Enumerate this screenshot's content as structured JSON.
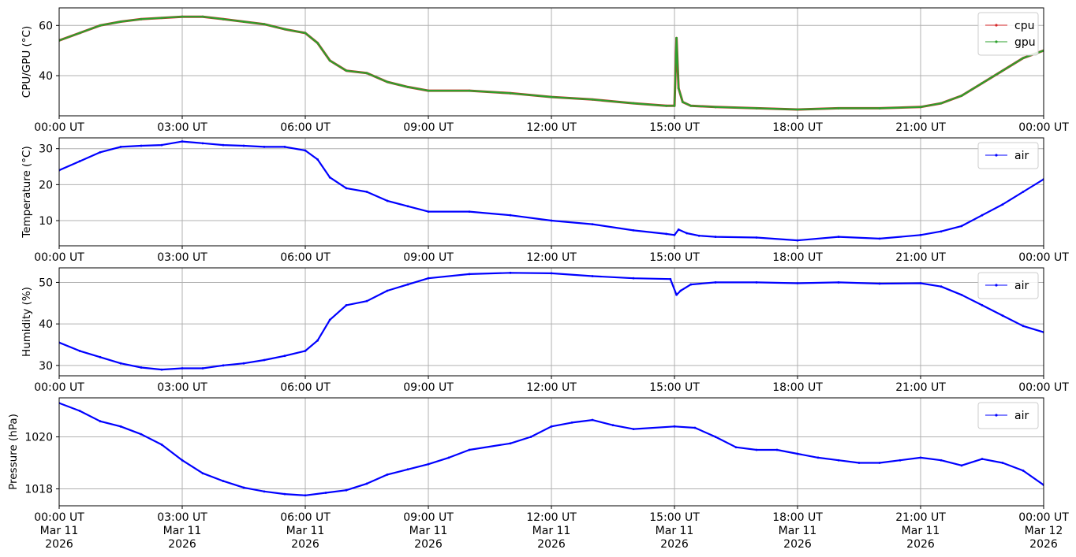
{
  "chart_data": [
    {
      "type": "line",
      "ylabel": "CPU/GPU (°C)",
      "ylim": [
        24,
        67
      ],
      "yticks": [
        40,
        60
      ],
      "xlim": [
        0,
        24
      ],
      "xticks": [
        0,
        3,
        6,
        9,
        12,
        15,
        18,
        21,
        24
      ],
      "xtick_labels": [
        "00:00 UT",
        "03:00 UT",
        "06:00 UT",
        "09:00 UT",
        "12:00 UT",
        "15:00 UT",
        "18:00 UT",
        "21:00 UT",
        "00:00 UT"
      ],
      "grid": true,
      "legend": "top-right",
      "series": [
        {
          "name": "cpu",
          "color": "#d62728",
          "x": [
            0,
            0.5,
            1,
            1.5,
            2,
            2.5,
            3,
            3.5,
            4,
            4.5,
            5,
            5.5,
            6,
            6.3,
            6.6,
            7,
            7.5,
            8,
            8.5,
            9,
            10,
            11,
            12,
            13,
            14,
            14.8,
            15.0,
            15.05,
            15.1,
            15.2,
            15.4,
            16,
            17,
            18,
            19,
            20,
            21,
            21.5,
            22,
            22.5,
            23,
            23.5,
            24
          ],
          "y": [
            54,
            57,
            60,
            61.5,
            62.5,
            63,
            63.5,
            63.5,
            62.5,
            61.5,
            60.5,
            58.5,
            57,
            53,
            46,
            42,
            41,
            37.5,
            35.5,
            34,
            34,
            33,
            31.5,
            30.5,
            29,
            28,
            28,
            55,
            35,
            29.5,
            28,
            27.5,
            27,
            26.5,
            27,
            27,
            27.5,
            29,
            32,
            37,
            42,
            47,
            50
          ]
        },
        {
          "name": "gpu",
          "color": "#2ca02c",
          "x": [
            0,
            0.5,
            1,
            1.5,
            2,
            2.5,
            3,
            3.5,
            4,
            4.5,
            5,
            5.5,
            6,
            6.3,
            6.6,
            7,
            7.5,
            8,
            8.5,
            9,
            10,
            11,
            12,
            13,
            14,
            14.8,
            15.0,
            15.05,
            15.1,
            15.2,
            15.4,
            16,
            17,
            18,
            19,
            20,
            21,
            21.5,
            22,
            22.5,
            23,
            23.5,
            24
          ],
          "y": [
            54,
            57,
            60,
            61.5,
            62.5,
            63,
            63.5,
            63.5,
            62.5,
            61.5,
            60.5,
            58.5,
            57,
            53,
            46,
            42,
            41,
            37.5,
            35.5,
            34,
            34,
            33,
            31.5,
            30.5,
            29,
            28,
            28,
            55,
            35,
            29.5,
            28,
            27.5,
            27,
            26.5,
            27,
            27,
            27.5,
            29,
            32,
            37,
            42,
            47,
            50
          ]
        }
      ]
    },
    {
      "type": "line",
      "ylabel": "Temperature (°C)",
      "ylim": [
        3,
        33
      ],
      "yticks": [
        10,
        20,
        30
      ],
      "xlim": [
        0,
        24
      ],
      "xticks": [
        0,
        3,
        6,
        9,
        12,
        15,
        18,
        21,
        24
      ],
      "xtick_labels": [
        "00:00 UT",
        "03:00 UT",
        "06:00 UT",
        "09:00 UT",
        "12:00 UT",
        "15:00 UT",
        "18:00 UT",
        "21:00 UT",
        "00:00 UT"
      ],
      "grid": true,
      "legend": "top-right",
      "series": [
        {
          "name": "air",
          "color": "#0000ff",
          "x": [
            0,
            0.5,
            1,
            1.5,
            2,
            2.5,
            3,
            3.5,
            4,
            4.5,
            5,
            5.5,
            6,
            6.3,
            6.6,
            7,
            7.5,
            8,
            8.5,
            9,
            10,
            11,
            12,
            13,
            14,
            14.8,
            15.0,
            15.1,
            15.3,
            15.6,
            16,
            17,
            18,
            19,
            20,
            21,
            21.5,
            22,
            22.5,
            23,
            23.5,
            24
          ],
          "y": [
            24,
            26.5,
            29,
            30.5,
            30.8,
            31,
            32,
            31.5,
            31,
            30.8,
            30.5,
            30.5,
            29.5,
            27,
            22,
            19,
            18,
            15.5,
            14,
            12.5,
            12.5,
            11.5,
            10,
            9,
            7.3,
            6.3,
            6,
            7.5,
            6.5,
            5.8,
            5.5,
            5.3,
            4.5,
            5.5,
            5,
            6,
            7,
            8.5,
            11.5,
            14.5,
            18,
            21.5
          ]
        }
      ]
    },
    {
      "type": "line",
      "ylabel": "Humidity (%)",
      "ylim": [
        27.5,
        53.5
      ],
      "yticks": [
        30,
        40,
        50
      ],
      "xlim": [
        0,
        24
      ],
      "xticks": [
        0,
        3,
        6,
        9,
        12,
        15,
        18,
        21,
        24
      ],
      "xtick_labels": [
        "00:00 UT",
        "03:00 UT",
        "06:00 UT",
        "09:00 UT",
        "12:00 UT",
        "15:00 UT",
        "18:00 UT",
        "21:00 UT",
        "00:00 UT"
      ],
      "grid": true,
      "legend": "top-right",
      "series": [
        {
          "name": "air",
          "color": "#0000ff",
          "x": [
            0,
            0.5,
            1,
            1.5,
            2,
            2.5,
            3,
            3.5,
            4,
            4.5,
            5,
            5.5,
            6,
            6.3,
            6.6,
            7,
            7.5,
            8,
            8.5,
            9,
            10,
            11,
            12,
            13,
            14,
            14.9,
            15.05,
            15.15,
            15.4,
            16,
            17,
            18,
            19,
            20,
            21,
            21.5,
            22,
            22.5,
            23,
            23.5,
            24
          ],
          "y": [
            35.5,
            33.5,
            32,
            30.5,
            29.5,
            29,
            29.3,
            29.3,
            30,
            30.5,
            31.3,
            32.3,
            33.5,
            36,
            41,
            44.5,
            45.5,
            48,
            49.5,
            51,
            52,
            52.3,
            52.2,
            51.5,
            51,
            50.8,
            47,
            48,
            49.5,
            50,
            50,
            49.8,
            50,
            49.7,
            49.8,
            49,
            47,
            44.5,
            42,
            39.5,
            38
          ]
        }
      ]
    },
    {
      "type": "line",
      "ylabel": "Pressure (hPa)",
      "ylim": [
        1017.35,
        1021.5
      ],
      "yticks": [
        1018,
        1020
      ],
      "xlim": [
        0,
        24
      ],
      "xticks": [
        0,
        3,
        6,
        9,
        12,
        15,
        18,
        21,
        24
      ],
      "xtick_labels": [
        "00:00 UT\nMar 11\n2026",
        "03:00 UT\nMar 11\n2026",
        "06:00 UT\nMar 11\n2026",
        "09:00 UT\nMar 11\n2026",
        "12:00 UT\nMar 11\n2026",
        "15:00 UT\nMar 11\n2026",
        "18:00 UT\nMar 11\n2026",
        "21:00 UT\nMar 11\n2026",
        "00:00 UT\nMar 12\n2026"
      ],
      "grid": true,
      "legend": "top-right",
      "series": [
        {
          "name": "air",
          "color": "#0000ff",
          "x": [
            0,
            0.5,
            1,
            1.5,
            2,
            2.5,
            3,
            3.5,
            4,
            4.5,
            5,
            5.5,
            6,
            6.5,
            7,
            7.5,
            8,
            8.5,
            9,
            9.5,
            10,
            11,
            11.5,
            12,
            12.5,
            13,
            13.5,
            14,
            15,
            15.5,
            16,
            16.5,
            17,
            17.5,
            18,
            18.5,
            19,
            19.5,
            20,
            20.5,
            21,
            21.5,
            22,
            22.5,
            23,
            23.5,
            24
          ],
          "y": [
            1021.3,
            1021,
            1020.6,
            1020.4,
            1020.1,
            1019.7,
            1019.1,
            1018.6,
            1018.3,
            1018.05,
            1017.9,
            1017.8,
            1017.75,
            1017.85,
            1017.95,
            1018.2,
            1018.55,
            1018.75,
            1018.95,
            1019.2,
            1019.5,
            1019.75,
            1020,
            1020.4,
            1020.55,
            1020.65,
            1020.45,
            1020.3,
            1020.4,
            1020.35,
            1020,
            1019.6,
            1019.5,
            1019.5,
            1019.35,
            1019.2,
            1019.1,
            1019,
            1019,
            1019.1,
            1019.2,
            1019.1,
            1018.9,
            1019.15,
            1019,
            1018.7,
            1018.15
          ]
        }
      ]
    }
  ]
}
